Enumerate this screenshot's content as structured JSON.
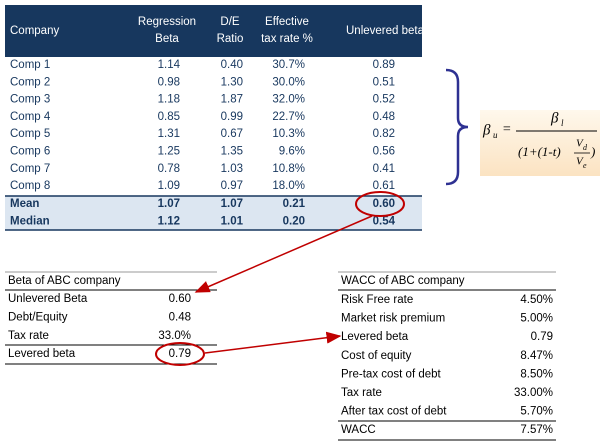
{
  "main_table": {
    "header": [
      [
        "Company"
      ],
      [
        "Regression",
        "Beta"
      ],
      [
        "D/E",
        "Ratio"
      ],
      [
        "Effective",
        "tax rate %"
      ],
      [
        "Unlevered beta"
      ]
    ],
    "rows": [
      [
        "Comp 1",
        "1.14",
        "0.40",
        "30.7%",
        "0.89"
      ],
      [
        "Comp 2",
        "0.98",
        "1.30",
        "30.0%",
        "0.51"
      ],
      [
        "Comp 3",
        "1.18",
        "1.87",
        "32.0%",
        "0.52"
      ],
      [
        "Comp 4",
        "0.85",
        "0.99",
        "22.7%",
        "0.48"
      ],
      [
        "Comp 5",
        "1.31",
        "0.67",
        "10.3%",
        "0.82"
      ],
      [
        "Comp 6",
        "1.25",
        "1.35",
        "9.6%",
        "0.56"
      ],
      [
        "Comp 7",
        "0.78",
        "1.03",
        "10.8%",
        "0.41"
      ],
      [
        "Comp 8",
        "1.09",
        "0.97",
        "18.0%",
        "0.61"
      ]
    ],
    "summary": [
      [
        "Mean",
        "1.07",
        "1.07",
        "0.21",
        "0.60"
      ],
      [
        "Median",
        "1.12",
        "1.01",
        "0.20",
        "0.54"
      ]
    ]
  },
  "formula": {
    "lhs": "β",
    "lhs_sub": "u",
    "equals": "=",
    "num": "β",
    "num_sub": "l",
    "den_left": "(1+(1-t)",
    "frac_num": "V",
    "frac_num_sub": "d",
    "frac_den": "V",
    "frac_den_sub": "e",
    "den_right": ")"
  },
  "beta_table": {
    "title": "Beta of ABC company",
    "rows": [
      [
        "Unlevered Beta",
        "0.60"
      ],
      [
        "Debt/Equity",
        "0.48"
      ],
      [
        "Tax rate",
        "33.0%"
      ],
      [
        "Levered beta",
        "0.79"
      ]
    ]
  },
  "wacc_table": {
    "title": "WACC of ABC company",
    "rows": [
      [
        "Risk Free rate",
        "4.50%"
      ],
      [
        "Market risk premium",
        "5.00%"
      ],
      [
        "Levered beta",
        "0.79"
      ],
      [
        "Cost of equity",
        "8.47%"
      ],
      [
        "Pre-tax cost of debt",
        "8.50%"
      ],
      [
        "Tax rate",
        "33.00%"
      ],
      [
        "After tax cost of debt",
        "5.70%"
      ],
      [
        "WACC",
        "7.57%"
      ]
    ]
  }
}
